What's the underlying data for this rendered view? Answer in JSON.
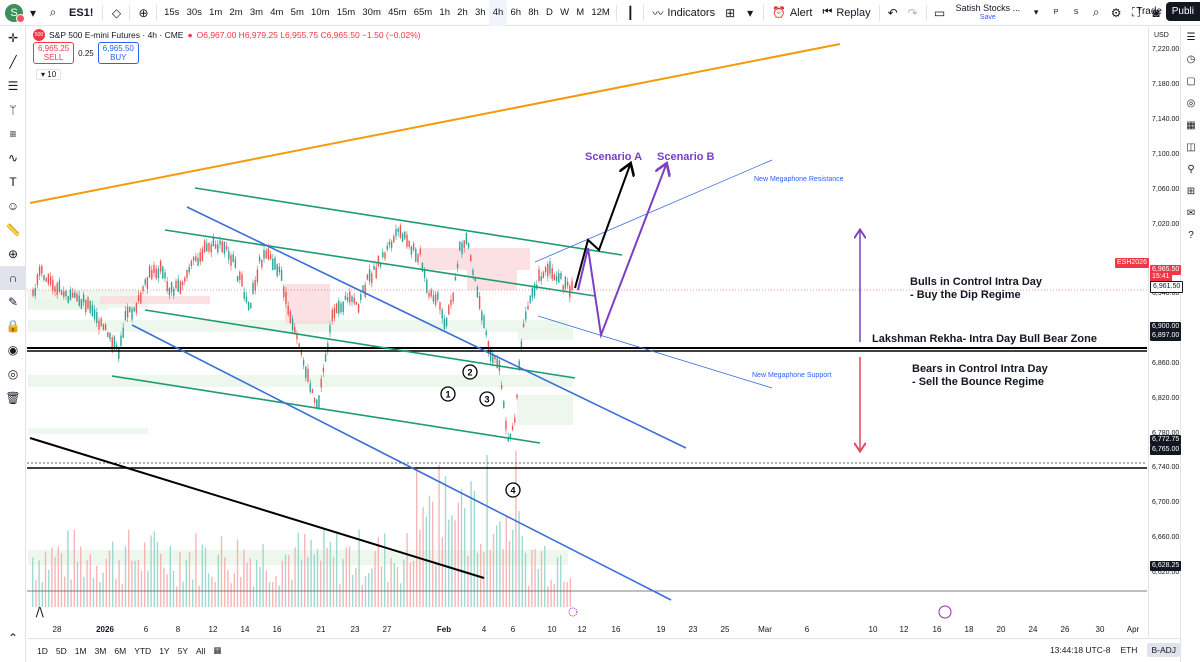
{
  "topbar": {
    "avatar": "S",
    "symbol": "ES1!",
    "intervals": [
      "15s",
      "30s",
      "1m",
      "2m",
      "3m",
      "4m",
      "5m",
      "10m",
      "15m",
      "30m",
      "45m",
      "65m",
      "1h",
      "2h",
      "3h",
      "4h",
      "6h",
      "8h",
      "D",
      "W",
      "M",
      "12M"
    ],
    "active_interval": "4h",
    "indicators": "Indicators",
    "alert": "Alert",
    "replay": "Replay",
    "user_name": "Satish Stocks ...",
    "save": "Save",
    "trade": "Trade",
    "publish": "Publi"
  },
  "legend": {
    "logo_text": "500",
    "title": "S&P 500 E-mini Futures · 4h · CME",
    "ohlc": "O6,967.00 H6,979.25 L6,955.75 C6,965.50 −1.50 (−0.02%)",
    "sell_price": "6,965.25",
    "sell_label": "SELL",
    "spread": "0.25",
    "buy_price": "6,965.50",
    "buy_label": "BUY",
    "quantity": "10"
  },
  "price_axis": {
    "currency": "USD",
    "ticks": [
      "7,220.00",
      "7,180.00",
      "7,140.00",
      "7,100.00",
      "7,060.00",
      "7,020.00",
      "6,940.00",
      "6,860.00",
      "6,820.00",
      "6,780.00",
      "6,740.00",
      "6,700.00",
      "6,660.00",
      "6,620.00"
    ],
    "tick_values": [
      7220,
      7180,
      7140,
      7100,
      7060,
      7020,
      6940,
      6860,
      6820,
      6780,
      6740,
      6700,
      6660,
      6620
    ],
    "tags": [
      {
        "text": "ESH2026",
        "kind": "symbol",
        "price": 6976
      },
      {
        "text": "6,965.50",
        "kind": "last",
        "price": 6968
      },
      {
        "text": "15:41",
        "kind": "timer",
        "price": 6960
      },
      {
        "text": "6,961.50",
        "kind": "plain",
        "price": 6950
      },
      {
        "text": "6,900.00",
        "kind": "dark",
        "price": 6902
      },
      {
        "text": "6,897.00",
        "kind": "dark",
        "price": 6892
      },
      {
        "text": "6,772.75",
        "kind": "dark",
        "price": 6772.75
      },
      {
        "text": "6,765.00",
        "kind": "dark",
        "price": 6761
      },
      {
        "text": "6,628.25",
        "kind": "dark",
        "price": 6628.25
      }
    ]
  },
  "annotations": {
    "scenario_a": "Scenario A",
    "scenario_b": "Scenario B",
    "megaphone_resistance": "New Megaphone Resistance",
    "megaphone_support": "New Megaphone Support",
    "bulls_line1": "Bulls in Control Intra Day",
    "bulls_line2": "- Buy the Dip Regime",
    "lakshman": "Lakshman Rekha- Intra Day Bull Bear Zone",
    "bears_line1": "Bears in Control Intra Day",
    "bears_line2": "- Sell the Bounce Regime",
    "markers": [
      "1",
      "2",
      "3",
      "4"
    ]
  },
  "time_axis": [
    "28",
    "2026",
    "6",
    "8",
    "12",
    "14",
    "16",
    "21",
    "23",
    "27",
    "Feb",
    "4",
    "6",
    "10",
    "12",
    "16",
    "19",
    "23",
    "25",
    "Mar",
    "6",
    "10",
    "12",
    "16",
    "18",
    "20",
    "24",
    "26",
    "30",
    "Apr"
  ],
  "bottombar": {
    "ranges": [
      "1D",
      "5D",
      "1M",
      "3M",
      "6M",
      "YTD",
      "1Y",
      "5Y",
      "All"
    ],
    "clock": "13:44:18 UTC-8",
    "session": "ETH",
    "adjust": "B-ADJ"
  },
  "colors": {
    "orange_line": "#f59a0c",
    "teal_channel": "#1e9b73",
    "blue_channel": "#3a6fd8",
    "scenario_purple": "#7b3fc4",
    "bear_arrow": "#e3455a",
    "up_candle": "#26a69a",
    "down_candle": "#ef5350"
  }
}
